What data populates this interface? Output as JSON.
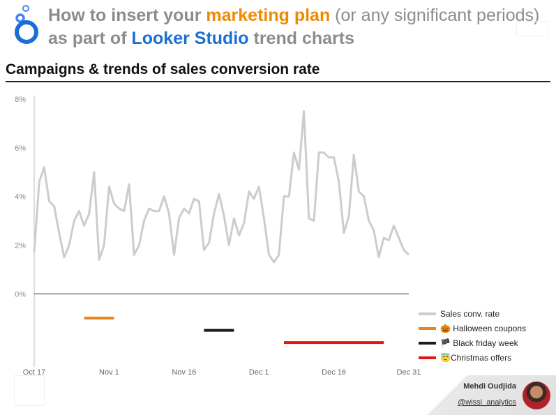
{
  "header": {
    "title_part1": "How to insert your ",
    "title_highlight1": "marketing plan",
    "title_part2": " (or any significant periods)",
    "title_line2_part1": "as part of ",
    "title_highlight2": "Looker Studio",
    "title_line2_part2": " trend charts"
  },
  "chart_data": {
    "type": "line",
    "title": "Campaigns & trends of sales conversion rate",
    "xlabel": "",
    "ylabel": "",
    "ylim": [
      -3.0,
      8.0
    ],
    "yticks": [
      {
        "value": 0,
        "label": "0%"
      },
      {
        "value": 2,
        "label": "2%"
      },
      {
        "value": 4,
        "label": "4%"
      },
      {
        "value": 6,
        "label": "6%"
      },
      {
        "value": 8,
        "label": "8%"
      }
    ],
    "x_range": [
      "2023-10-17",
      "2023-12-31"
    ],
    "xticks": [
      {
        "date": "2023-10-17",
        "label": "Oct 17"
      },
      {
        "date": "2023-11-01",
        "label": "Nov 1"
      },
      {
        "date": "2023-11-16",
        "label": "Nov 16"
      },
      {
        "date": "2023-12-01",
        "label": "Dec 1"
      },
      {
        "date": "2023-12-16",
        "label": "Dec 16"
      },
      {
        "date": "2023-12-31",
        "label": "Dec 31"
      }
    ],
    "legend_position": "bottom-right",
    "series": [
      {
        "name": "Sales conv. rate",
        "color": "#cccccc",
        "start_date": "2023-10-17",
        "values": [
          1.7,
          4.6,
          5.2,
          3.8,
          3.6,
          2.5,
          1.5,
          2.0,
          3.0,
          3.4,
          2.8,
          3.3,
          5.0,
          1.4,
          2.0,
          4.4,
          3.7,
          3.5,
          3.4,
          4.5,
          1.6,
          2.0,
          3.0,
          3.5,
          3.4,
          3.4,
          4.0,
          3.3,
          1.6,
          3.1,
          3.5,
          3.3,
          3.9,
          3.8,
          1.8,
          2.1,
          3.3,
          4.1,
          3.2,
          2.0,
          3.1,
          2.4,
          2.9,
          4.2,
          3.9,
          4.4,
          3.1,
          1.6,
          1.3,
          1.6,
          4.0,
          4.0,
          5.8,
          5.1,
          7.5,
          3.1,
          3.0,
          5.8,
          5.8,
          5.6,
          5.6,
          4.6,
          2.5,
          3.2,
          5.7,
          4.2,
          4.0,
          3.0,
          2.6,
          1.5,
          2.3,
          2.2,
          2.8,
          2.3,
          1.8,
          1.6
        ]
      },
      {
        "name": "🎃 Halloween coupons",
        "color": "#e8851a",
        "start": "2023-10-27",
        "end": "2023-11-02",
        "level": -1.0
      },
      {
        "name": "🏴 Black friday week",
        "color": "#1c1c1c",
        "start": "2023-11-20",
        "end": "2023-11-26",
        "level": -1.5
      },
      {
        "name": "😇Christmas offers",
        "color": "#e81414",
        "start": "2023-12-06",
        "end": "2023-12-26",
        "level": -2.0
      }
    ]
  },
  "footer": {
    "author": "Mehdi Oudjida",
    "handle": "@wissi_analytics"
  }
}
